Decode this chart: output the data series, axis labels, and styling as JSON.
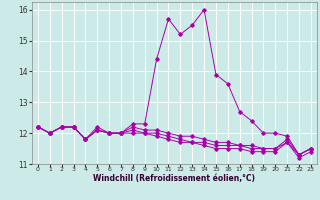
{
  "xlabel": "Windchill (Refroidissement éolien,°C)",
  "background_color": "#cceae7",
  "grid_color": "#ffffff",
  "line_color": "#aa00aa",
  "x_hours": [
    0,
    1,
    2,
    3,
    4,
    5,
    6,
    7,
    8,
    9,
    10,
    11,
    12,
    13,
    14,
    15,
    16,
    17,
    18,
    19,
    20,
    21,
    22,
    23
  ],
  "series1": [
    12.2,
    12.0,
    12.2,
    12.2,
    11.8,
    12.2,
    12.0,
    12.0,
    12.3,
    12.3,
    14.4,
    15.7,
    15.2,
    15.5,
    16.0,
    13.9,
    13.6,
    12.7,
    12.4,
    12.0,
    12.0,
    11.9,
    11.3,
    11.5
  ],
  "series2": [
    12.2,
    12.0,
    12.2,
    12.2,
    11.8,
    12.1,
    12.0,
    12.0,
    12.2,
    12.1,
    12.1,
    12.0,
    11.9,
    11.9,
    11.8,
    11.7,
    11.7,
    11.6,
    11.6,
    11.5,
    11.5,
    11.8,
    11.3,
    11.5
  ],
  "series3": [
    12.2,
    12.0,
    12.2,
    12.2,
    11.8,
    12.1,
    12.0,
    12.0,
    12.1,
    12.0,
    12.0,
    11.9,
    11.8,
    11.7,
    11.7,
    11.6,
    11.6,
    11.6,
    11.5,
    11.5,
    11.5,
    11.7,
    11.3,
    11.5
  ],
  "series4": [
    12.2,
    12.0,
    12.2,
    12.2,
    11.8,
    12.1,
    12.0,
    12.0,
    12.0,
    12.0,
    11.9,
    11.8,
    11.7,
    11.7,
    11.6,
    11.5,
    11.5,
    11.5,
    11.4,
    11.4,
    11.4,
    11.7,
    11.2,
    11.4
  ],
  "ylim": [
    11.0,
    16.25
  ],
  "yticks": [
    11,
    12,
    13,
    14,
    15,
    16
  ],
  "xticks": [
    0,
    1,
    2,
    3,
    4,
    5,
    6,
    7,
    8,
    9,
    10,
    11,
    12,
    13,
    14,
    15,
    16,
    17,
    18,
    19,
    20,
    21,
    22,
    23
  ]
}
